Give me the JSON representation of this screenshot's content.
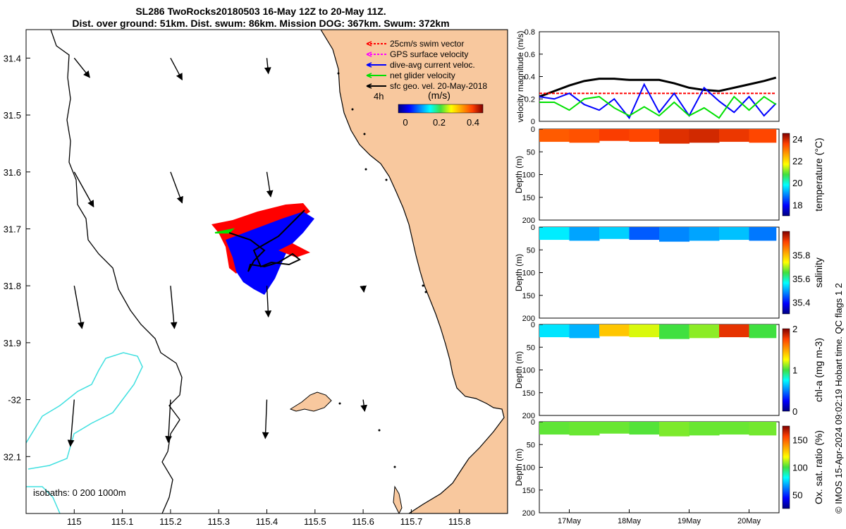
{
  "header": {
    "title_line1": "SL286 TwoRocks20180503 16-May 12Z to 20-May 11Z.",
    "title_line2": "Dist. over ground: 51km. Dist. swum: 86km. Mission DOG: 367km. Swum: 372km"
  },
  "copyright": "© IMOS 15-Apr-2024 09:02:19 Hobart time. QC flags 1  2",
  "colors": {
    "land": "#f8c89e",
    "swim": "#ff0000",
    "gps": "#ff00ff",
    "current": "#0000ff",
    "net": "#00e000",
    "sfc": "#000000",
    "isobath": "#40e0e0"
  },
  "chart_data": [
    {
      "id": "map",
      "type": "scatter",
      "title": "Glider track map with velocity vectors",
      "xlim": [
        114.9,
        115.9
      ],
      "ylim": [
        -32.2,
        -31.35
      ],
      "x_ticks": [
        115,
        115.1,
        115.2,
        115.3,
        115.4,
        115.5,
        115.6,
        115.7,
        115.8
      ],
      "x_tick_labels": [
        "115",
        "115.1",
        "115.2",
        "115.3",
        "115.4",
        "115.5",
        "115.6",
        "115.7",
        "115.8"
      ],
      "y_ticks": [
        -31.4,
        -31.5,
        -31.6,
        -31.7,
        -31.8,
        -31.9,
        -32,
        -32.1
      ],
      "y_tick_labels": [
        "31.4",
        "31.5",
        "31.6",
        "31.7",
        "31.8",
        "31.9",
        "-32",
        "32.1"
      ],
      "legend": [
        {
          "label": "25cm/s swim vector",
          "color": "#ff0000"
        },
        {
          "label": "GPS surface velocity",
          "color": "#ff00ff"
        },
        {
          "label": "dive-avg current veloc.",
          "color": "#0000ff"
        },
        {
          "label": "net glider velocity",
          "color": "#00e000"
        },
        {
          "label": "sfc geo. vel. 20-May-2018",
          "color": "#000000"
        }
      ],
      "scale_vector_label": "4h",
      "colorbar": {
        "label": "(m/s)",
        "ticks": [
          0,
          0.2,
          0.4
        ],
        "range": [
          0,
          0.5
        ]
      },
      "isobath_label": "isobaths: 0   200  1000m",
      "sfc_vectors": [
        {
          "lon": 115.0,
          "lat": -31.4,
          "u": 0.2,
          "v": -0.25
        },
        {
          "lon": 115.2,
          "lat": -31.4,
          "u": 0.15,
          "v": -0.28
        },
        {
          "lon": 115.4,
          "lat": -31.4,
          "u": 0.02,
          "v": -0.2
        },
        {
          "lon": 115.0,
          "lat": -31.6,
          "u": 0.25,
          "v": -0.45
        },
        {
          "lon": 115.2,
          "lat": -31.6,
          "u": 0.15,
          "v": -0.4
        },
        {
          "lon": 115.4,
          "lat": -31.6,
          "u": 0.05,
          "v": -0.32
        },
        {
          "lon": 115.0,
          "lat": -31.8,
          "u": 0.1,
          "v": -0.55
        },
        {
          "lon": 115.2,
          "lat": -31.8,
          "u": 0.05,
          "v": -0.55
        },
        {
          "lon": 115.4,
          "lat": -31.8,
          "u": 0.02,
          "v": -0.4
        },
        {
          "lon": 115.6,
          "lat": -31.8,
          "u": 0.01,
          "v": -0.08
        },
        {
          "lon": 115.0,
          "lat": -32.0,
          "u": -0.05,
          "v": -0.6
        },
        {
          "lon": 115.2,
          "lat": -32.0,
          "u": -0.03,
          "v": -0.55
        },
        {
          "lon": 115.4,
          "lat": -32.0,
          "u": -0.02,
          "v": -0.5
        },
        {
          "lon": 115.6,
          "lat": -32.0,
          "u": 0.02,
          "v": -0.15
        }
      ]
    },
    {
      "id": "velocity",
      "type": "line",
      "ylabel": "velocity magnitude (m/s)",
      "ylim": [
        0,
        0.8
      ],
      "y_ticks": [
        0,
        0.2,
        0.4,
        0.6,
        0.8
      ],
      "x": [
        0,
        0.25,
        0.5,
        0.75,
        1,
        1.25,
        1.5,
        1.75,
        2,
        2.25,
        2.5,
        2.75,
        3,
        3.25,
        3.5,
        3.75,
        3.95
      ],
      "series": [
        {
          "name": "sfc geo. vel.",
          "color": "#000000",
          "values": [
            0.22,
            0.27,
            0.32,
            0.36,
            0.38,
            0.38,
            0.37,
            0.37,
            0.37,
            0.34,
            0.3,
            0.28,
            0.27,
            0.3,
            0.33,
            0.36,
            0.39
          ]
        },
        {
          "name": "swim vector",
          "color": "#ff0000",
          "values": [
            0.25,
            0.25,
            0.25,
            0.25,
            0.25,
            0.25,
            0.25,
            0.25,
            0.25,
            0.25,
            0.25,
            0.25,
            0.25,
            0.25,
            0.25,
            0.25,
            0.25
          ]
        },
        {
          "name": "dive-avg current veloc.",
          "color": "#0000ff",
          "values": [
            0.22,
            0.2,
            0.25,
            0.15,
            0.1,
            0.2,
            0.03,
            0.33,
            0.08,
            0.25,
            0.05,
            0.3,
            0.18,
            0.08,
            0.22,
            0.05,
            0.16
          ]
        },
        {
          "name": "net glider velocity",
          "color": "#00e000",
          "values": [
            0.17,
            0.17,
            0.1,
            0.2,
            0.22,
            0.12,
            0.05,
            0.13,
            0.05,
            0.17,
            0.05,
            0.12,
            0.03,
            0.22,
            0.1,
            0.22,
            0.15
          ]
        }
      ]
    },
    {
      "id": "temperature",
      "type": "heatmap",
      "ylabel": "Depth (m)",
      "colorbar_label": "temperature (°C)",
      "ylim": [
        0,
        200
      ],
      "y_ticks": [
        0,
        50,
        100,
        150,
        200
      ],
      "clim": [
        17,
        24.5
      ],
      "cbar_ticks": [
        18,
        20,
        22,
        24
      ],
      "x": [
        0,
        0.5,
        1,
        1.5,
        2,
        2.5,
        3,
        3.5,
        3.95
      ],
      "max_depth": [
        28,
        30,
        26,
        28,
        32,
        30,
        28,
        30,
        26
      ],
      "values": [
        23.3,
        23.4,
        23.6,
        23.5,
        23.8,
        23.9,
        23.7,
        23.5,
        23.4
      ]
    },
    {
      "id": "salinity",
      "type": "heatmap",
      "ylabel": "Depth (m)",
      "colorbar_label": "salinity",
      "ylim": [
        0,
        200
      ],
      "y_ticks": [
        0,
        50,
        100,
        150,
        200
      ],
      "clim": [
        35.3,
        36.0
      ],
      "cbar_ticks": [
        35.4,
        35.6,
        35.8
      ],
      "x": [
        0,
        0.5,
        1,
        1.5,
        2,
        2.5,
        3,
        3.5,
        3.95
      ],
      "max_depth": [
        28,
        30,
        26,
        28,
        32,
        30,
        28,
        30,
        26
      ],
      "values": [
        35.55,
        35.5,
        35.53,
        35.45,
        35.48,
        35.5,
        35.52,
        35.47,
        35.5
      ]
    },
    {
      "id": "chla",
      "type": "heatmap",
      "ylabel": "Depth (m)",
      "colorbar_label": "chl-a (mg m-3)",
      "ylim": [
        0,
        200
      ],
      "y_ticks": [
        0,
        50,
        100,
        150,
        200
      ],
      "clim": [
        0,
        2
      ],
      "cbar_ticks": [
        0,
        1,
        2
      ],
      "x": [
        0,
        0.5,
        1,
        1.5,
        2,
        2.5,
        3,
        3.5,
        3.95
      ],
      "max_depth": [
        28,
        30,
        26,
        28,
        32,
        30,
        28,
        30,
        26
      ],
      "values": [
        0.7,
        0.6,
        1.4,
        1.2,
        1.0,
        1.1,
        1.8,
        1.0,
        1.1
      ]
    },
    {
      "id": "oxygen",
      "type": "heatmap",
      "ylabel": "Depth (m)",
      "colorbar_label": "Ox. sat. ratio (%)",
      "ylim": [
        0,
        200
      ],
      "y_ticks": [
        0,
        50,
        100,
        150,
        200
      ],
      "clim": [
        25,
        175
      ],
      "cbar_ticks": [
        50,
        100,
        150
      ],
      "x": [
        0,
        0.5,
        1,
        1.5,
        2,
        2.5,
        3,
        3.5,
        3.95
      ],
      "max_depth": [
        28,
        30,
        26,
        28,
        32,
        30,
        28,
        30,
        26
      ],
      "values": [
        103,
        104,
        104,
        102,
        106,
        104,
        104,
        105,
        104
      ]
    }
  ],
  "time_axis": {
    "ticks": [
      0.5,
      1.5,
      2.5,
      3.5
    ],
    "labels": [
      "17May",
      "18May",
      "19May",
      "20May"
    ]
  }
}
